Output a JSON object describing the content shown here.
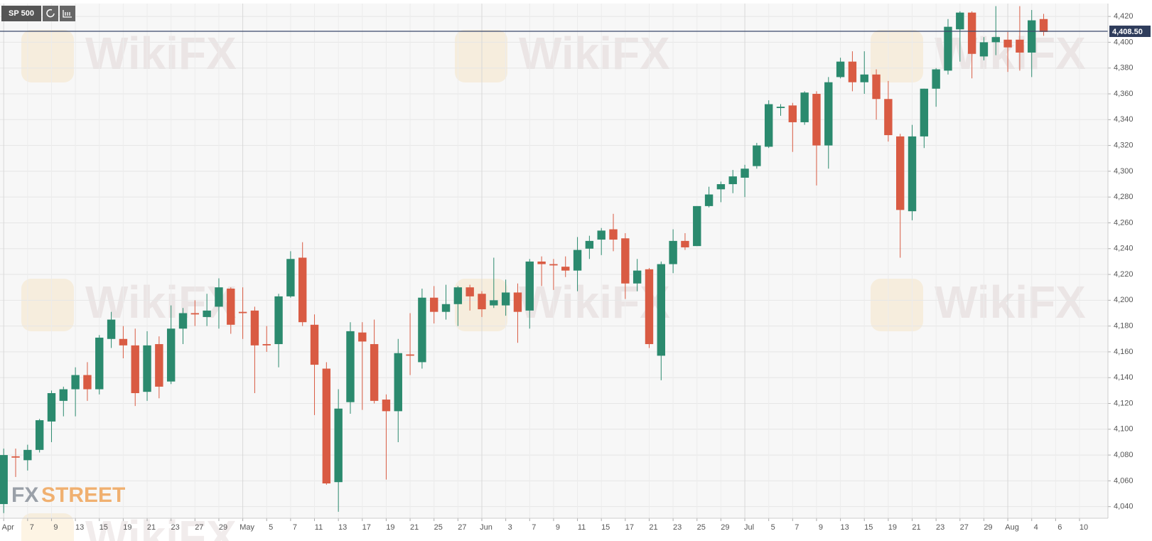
{
  "chart_data": {
    "type": "candlestick",
    "symbol": "SP 500",
    "watermark": "WikiFX",
    "logo": [
      "FX",
      "STREET"
    ],
    "categories": [
      "Apr",
      null,
      "7",
      null,
      "9",
      null,
      "13",
      null,
      "15",
      null,
      "19",
      null,
      "21",
      null,
      "23",
      null,
      "27",
      null,
      "29",
      null,
      "May",
      null,
      "5",
      null,
      "7",
      null,
      "11",
      null,
      "13",
      null,
      "17",
      null,
      "19",
      null,
      "21",
      null,
      "25",
      null,
      "27",
      null,
      "Jun",
      null,
      "3",
      null,
      "7",
      null,
      "9",
      null,
      "11",
      null,
      "15",
      null,
      "17",
      null,
      "21",
      null,
      "23",
      null,
      "25",
      null,
      "29",
      null,
      "Jul",
      null,
      "5",
      null,
      "7",
      null,
      "9",
      null,
      "13",
      null,
      "15",
      null,
      "19",
      null,
      "21",
      null,
      "23",
      null,
      "27",
      null,
      "29",
      null,
      "Aug",
      null,
      "4",
      null,
      "6",
      null,
      "10"
    ],
    "open": [
      4042,
      4079,
      4076,
      4084,
      4106,
      4122,
      4131,
      4142,
      4131,
      4170,
      4170,
      4165,
      4129,
      4166,
      4137,
      4178,
      4190,
      4187,
      4195,
      4209,
      4191,
      4192,
      4166,
      4166,
      4203,
      4233,
      4181,
      4147,
      4059,
      4121,
      4175,
      4166,
      4123,
      4114,
      4158,
      4152,
      4202,
      4191,
      4197,
      4210,
      4205,
      4196,
      4196,
      4206,
      4192,
      4230,
      4228,
      4226,
      4223,
      4240,
      4247,
      4255,
      4248,
      4213,
      4224,
      4157,
      4228,
      4246,
      4242,
      4273,
      4286,
      4290,
      4295,
      4304,
      4319,
      4349,
      4351,
      4338,
      4360,
      4320,
      4373,
      4385,
      4369,
      4375,
      4356,
      4327,
      4269,
      4327,
      4364,
      4378,
      4410,
      4423,
      4389,
      4400,
      4402,
      4402,
      4392,
      4418,
      null,
      null,
      null
    ],
    "high": [
      4085,
      4085,
      4088,
      4108,
      4130,
      4133,
      4148,
      4152,
      4173,
      4191,
      4180,
      4178,
      4176,
      4172,
      4196,
      4194,
      4200,
      4205,
      4217,
      4210,
      4210,
      4195,
      4180,
      4205,
      4238,
      4245,
      4189,
      4152,
      4131,
      4183,
      4183,
      4185,
      4127,
      4170,
      4190,
      4209,
      4211,
      4212,
      4211,
      4212,
      4207,
      4233,
      4216,
      4213,
      4232,
      4234,
      4232,
      4234,
      4249,
      4250,
      4256,
      4267,
      4252,
      4232,
      4225,
      4230,
      4255,
      4252,
      4273,
      4288,
      4292,
      4301,
      4305,
      4322,
      4355,
      4352,
      4353,
      4362,
      4362,
      4373,
      4388,
      4393,
      4393,
      4379,
      4370,
      4329,
      4336,
      4364,
      4380,
      4418,
      4424,
      4424,
      4404,
      4428,
      4408,
      4428,
      4425,
      4422,
      null,
      null,
      null
    ],
    "low": [
      4035,
      4063,
      4068,
      4082,
      4090,
      4110,
      4110,
      4122,
      4127,
      4163,
      4155,
      4118,
      4122,
      4124,
      4135,
      4166,
      4180,
      4180,
      4178,
      4174,
      4170,
      4128,
      4160,
      4148,
      4202,
      4180,
      4111,
      4057,
      4036,
      4112,
      4115,
      4120,
      4061,
      4090,
      4142,
      4147,
      4182,
      4185,
      4180,
      4192,
      4187,
      4194,
      4188,
      4167,
      4178,
      4211,
      4208,
      4218,
      4207,
      4232,
      4235,
      4238,
      4201,
      4207,
      4163,
      4138,
      4221,
      4239,
      4242,
      4272,
      4276,
      4283,
      4280,
      4302,
      4318,
      4343,
      4315,
      4336,
      4289,
      4302,
      4372,
      4362,
      4360,
      4340,
      4323,
      4233,
      4262,
      4318,
      4350,
      4375,
      4385,
      4372,
      4386,
      4390,
      4377,
      4378,
      4373,
      4405,
      null,
      null,
      null
    ],
    "close": [
      4080,
      4078,
      4084,
      4107,
      4128,
      4131,
      4142,
      4131,
      4171,
      4185,
      4165,
      4128,
      4165,
      4133,
      4178,
      4190,
      4189,
      4192,
      4210,
      4181,
      4190,
      4165,
      4165,
      4203,
      4232,
      4183,
      4150,
      4058,
      4116,
      4176,
      4168,
      4122,
      4114,
      4159,
      4157,
      4202,
      4191,
      4197,
      4210,
      4203,
      4193,
      4200,
      4206,
      4191,
      4230,
      4228,
      4227,
      4223,
      4239,
      4246,
      4254,
      4247,
      4213,
      4223,
      4166,
      4228,
      4246,
      4241,
      4273,
      4282,
      4290,
      4296,
      4302,
      4320,
      4352,
      4350,
      4338,
      4361,
      4320,
      4369,
      4385,
      4369,
      4375,
      4356,
      4328,
      4270,
      4327,
      4364,
      4379,
      4412,
      4423,
      4391,
      4400,
      4404,
      4396,
      4392,
      4417,
      4408,
      null,
      null,
      null
    ],
    "up_color": "#2b8a6e",
    "down_color": "#d95b43",
    "last_price": {
      "value": 4408.5,
      "label": "4,408.50"
    },
    "ylim": [
      4031,
      4430
    ],
    "yticks": [
      {
        "value": 4040,
        "label": "4,040"
      },
      {
        "value": 4060,
        "label": "4,060"
      },
      {
        "value": 4080,
        "label": "4,080"
      },
      {
        "value": 4100,
        "label": "4,100"
      },
      {
        "value": 4120,
        "label": "4,120"
      },
      {
        "value": 4140,
        "label": "4,140"
      },
      {
        "value": 4160,
        "label": "4,160"
      },
      {
        "value": 4180,
        "label": "4,180"
      },
      {
        "value": 4200,
        "label": "4,200"
      },
      {
        "value": 4220,
        "label": "4,220"
      },
      {
        "value": 4240,
        "label": "4,240"
      },
      {
        "value": 4260,
        "label": "4,260"
      },
      {
        "value": 4280,
        "label": "4,280"
      },
      {
        "value": 4300,
        "label": "4,300"
      },
      {
        "value": 4320,
        "label": "4,320"
      },
      {
        "value": 4340,
        "label": "4,340"
      },
      {
        "value": 4360,
        "label": "4,360"
      },
      {
        "value": 4380,
        "label": "4,380"
      },
      {
        "value": 4400,
        "label": "4,400"
      },
      {
        "value": 4420,
        "label": "4,420"
      }
    ],
    "grid": true
  }
}
